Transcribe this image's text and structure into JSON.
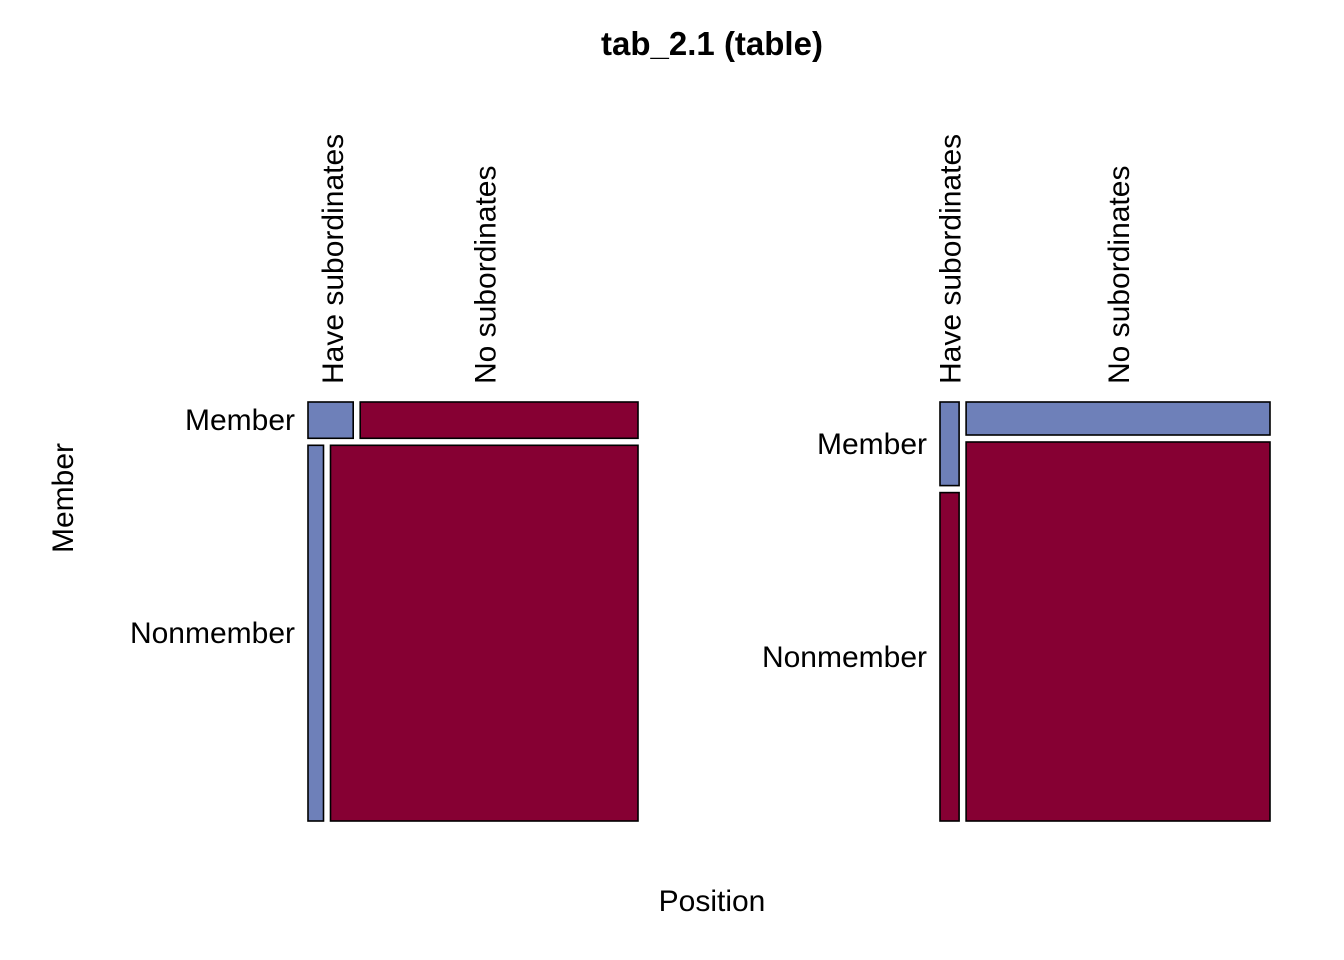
{
  "chart_data": {
    "type": "mosaic",
    "title": "tab_2.1 (table)",
    "xlabel": "Position",
    "ylabel": "Member",
    "x_categories": [
      "Have subordinates",
      "No subordinates"
    ],
    "y_categories": [
      "Member",
      "Nonmember"
    ],
    "colors": {
      "Have subordinates": "#6E80B9",
      "No subordinates": "#860033"
    },
    "panels": [
      {
        "split_first": "Member",
        "row_share": {
          "Member": 0.088,
          "Nonmember": 0.912
        },
        "col_share_within_row": {
          "Member": {
            "Have subordinates": 0.14,
            "No subordinates": 0.86
          },
          "Nonmember": {
            "Have subordinates": 0.048,
            "No subordinates": 0.952
          }
        },
        "cell_fill": {
          "Member": {
            "Have subordinates": "#6E80B9",
            "No subordinates": "#860033"
          },
          "Nonmember": {
            "Have subordinates": "#6E80B9",
            "No subordinates": "#860033"
          }
        }
      },
      {
        "split_first": "Position",
        "col_share": {
          "Have subordinates": 0.059,
          "No subordinates": 0.941
        },
        "row_share_within_col": {
          "Have subordinates": {
            "Member": 0.203,
            "Nonmember": 0.797
          },
          "No subordinates": {
            "Member": 0.08,
            "Nonmember": 0.92
          }
        },
        "cell_fill": {
          "Have subordinates": {
            "Member": "#6E80B9",
            "Nonmember": "#860033"
          },
          "No subordinates": {
            "Member": "#6E80B9",
            "Nonmember": "#860033"
          }
        }
      }
    ]
  }
}
